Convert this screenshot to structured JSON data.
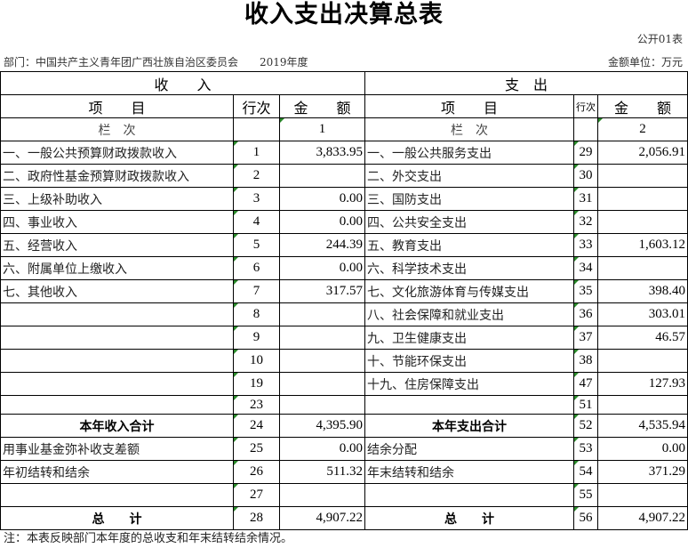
{
  "title": "收入支出决算总表",
  "form_code": "公开01表",
  "department": "部门：中国共产主义青年团广西壮族自治区委员会　　2019年度",
  "unit": "金额单位：万元",
  "headers": {
    "income": "收　　入",
    "expense": "支　出",
    "item": "项　　目",
    "line_no": "行次",
    "amount": "金　　额",
    "col_index": "栏　次",
    "col1": "1",
    "col2": "2"
  },
  "rows": [
    {
      "in_item": "一、一般公共预算财政拨款收入",
      "in_no": "1",
      "in_amt": "3,833.95",
      "ex_item": "一、一般公共服务支出",
      "ex_no": "29",
      "ex_amt": "2,056.91"
    },
    {
      "in_item": "二、政府性基金预算财政拨款收入",
      "in_no": "2",
      "in_amt": "",
      "ex_item": "二、外交支出",
      "ex_no": "30",
      "ex_amt": ""
    },
    {
      "in_item": "三、上级补助收入",
      "in_no": "3",
      "in_amt": "0.00",
      "ex_item": "三、国防支出",
      "ex_no": "31",
      "ex_amt": ""
    },
    {
      "in_item": "四、事业收入",
      "in_no": "4",
      "in_amt": "0.00",
      "ex_item": "四、公共安全支出",
      "ex_no": "32",
      "ex_amt": ""
    },
    {
      "in_item": "五、经营收入",
      "in_no": "5",
      "in_amt": "244.39",
      "ex_item": "五、教育支出",
      "ex_no": "33",
      "ex_amt": "1,603.12"
    },
    {
      "in_item": "六、附属单位上缴收入",
      "in_no": "6",
      "in_amt": "0.00",
      "ex_item": "六、科学技术支出",
      "ex_no": "34",
      "ex_amt": ""
    },
    {
      "in_item": "七、其他收入",
      "in_no": "7",
      "in_amt": "317.57",
      "ex_item": "七、文化旅游体育与传媒支出",
      "ex_no": "35",
      "ex_amt": "398.40"
    },
    {
      "in_item": "",
      "in_no": "8",
      "in_amt": "",
      "ex_item": "八、社会保障和就业支出",
      "ex_no": "36",
      "ex_amt": "303.01"
    },
    {
      "in_item": "",
      "in_no": "9",
      "in_amt": "",
      "ex_item": "九、卫生健康支出",
      "ex_no": "37",
      "ex_amt": "46.57"
    },
    {
      "in_item": "",
      "in_no": "10",
      "in_amt": "",
      "ex_item": "十、节能环保支出",
      "ex_no": "38",
      "ex_amt": ""
    },
    {
      "in_item": "",
      "in_no": "19",
      "in_amt": "",
      "ex_item": "十九、住房保障支出",
      "ex_no": "47",
      "ex_amt": "127.93"
    },
    {
      "in_item": "",
      "in_no": "23",
      "in_amt": "",
      "ex_item": "",
      "ex_no": "51",
      "ex_amt": ""
    },
    {
      "in_item": "本年收入合计",
      "in_no": "24",
      "in_amt": "4,395.90",
      "ex_item": "本年支出合计",
      "ex_no": "52",
      "ex_amt": "4,535.94",
      "bold": true
    },
    {
      "in_item": "用事业基金弥补收支差额",
      "in_no": "25",
      "in_amt": "0.00",
      "ex_item": "结余分配",
      "ex_no": "53",
      "ex_amt": "0.00"
    },
    {
      "in_item": "年初结转和结余",
      "in_no": "26",
      "in_amt": "511.32",
      "ex_item": "年末结转和结余",
      "ex_no": "54",
      "ex_amt": "371.29"
    },
    {
      "in_item": "",
      "in_no": "27",
      "in_amt": "",
      "ex_item": "",
      "ex_no": "55",
      "ex_amt": ""
    },
    {
      "in_item": "总　　计",
      "in_no": "28",
      "in_amt": "4,907.22",
      "ex_item": "总　　计",
      "ex_no": "56",
      "ex_amt": "4,907.22",
      "bold": true
    }
  ],
  "note": "注：本表反映部门本年度的总收支和年末结转结余情况。"
}
